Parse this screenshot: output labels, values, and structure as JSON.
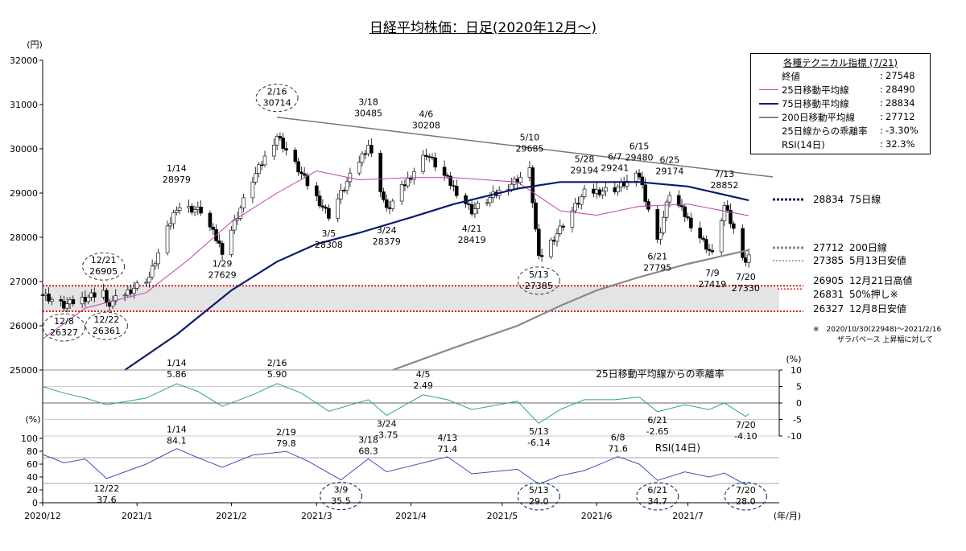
{
  "title": "日経平均株価：日足(2020年12月～)",
  "colors": {
    "candle_up": "#ffffff",
    "candle_down": "#000000",
    "ma25": "#c040b0",
    "ma75": "#0a1a6e",
    "ma200": "#888888",
    "trendline": "#777777",
    "band_fill": "#e4e4e4",
    "band_line": "#d41f1f",
    "deviation": "#2aa198",
    "rsi": "#3f51b5",
    "ellipse": "#333333"
  },
  "legend": {
    "title": "各種テクニカル指標 (7/21)",
    "rows": [
      {
        "name": "終値",
        "value": "27548",
        "swatch": "none"
      },
      {
        "name": "25日移動平均線",
        "value": "28490",
        "swatch": "ma25"
      },
      {
        "name": "75日移動平均線",
        "value": "28834",
        "swatch": "ma75"
      },
      {
        "name": "200日移動平均線",
        "value": "27712",
        "swatch": "ma200"
      },
      {
        "name": "25日線からの乖離率",
        "value": "-3.30%",
        "swatch": "none"
      },
      {
        "name": "RSI(14日)",
        "value": "32.3%",
        "swatch": "none"
      }
    ]
  },
  "right_labels": [
    {
      "value": "28834",
      "text": "75日線",
      "price": 28834,
      "line": "ma75"
    },
    {
      "value": "27712",
      "text": "200日線",
      "price": 27712,
      "line": "ma200"
    },
    {
      "value": "27385",
      "text": "5月13日安値",
      "price": 27385,
      "line": "dotted"
    },
    {
      "value": "26905",
      "text": "12月21日高値",
      "price": 26905,
      "line": "none"
    },
    {
      "value": "26831",
      "text": "50%押し※",
      "price": 26831,
      "line": "red"
    },
    {
      "value": "26327",
      "text": "12月8日安値",
      "price": 26327,
      "line": "none"
    }
  ],
  "footnote": {
    "line1": "※　2020/10/30(22948)～2021/2/16",
    "line2": "ザラバベース 上昇幅に対して"
  },
  "chart_data": [
    {
      "type": "candlestick",
      "title": "日経平均株価：日足(2020年12月～)",
      "yunit": "(円)",
      "ylim": [
        25000,
        32000
      ],
      "yticks": [
        "25000",
        "26000",
        "27000",
        "28000",
        "29000",
        "30000",
        "31000",
        "32000"
      ],
      "grid": false,
      "band": [
        26327,
        26905
      ],
      "band_line": 26831,
      "trendline": {
        "from": {
          "x": "2021/2/16",
          "y": 30714
        },
        "to": {
          "x": "2021/7/21",
          "y": 29430
        }
      },
      "annotations": [
        {
          "date": "2020/12/8",
          "text": "12/8",
          "value": "26327",
          "price": 26327,
          "side": "below",
          "circled": true
        },
        {
          "date": "2020/12/21",
          "text": "12/21",
          "value": "26905",
          "price": 26905,
          "side": "above",
          "circled": true
        },
        {
          "date": "2020/12/22",
          "text": "12/22",
          "value": "26361",
          "price": 26361,
          "side": "below",
          "circled": true
        },
        {
          "date": "2021/1/14",
          "text": "1/14",
          "value": "28979",
          "price": 28979,
          "side": "above",
          "circled": false
        },
        {
          "date": "2021/1/29",
          "text": "1/29",
          "value": "27629",
          "price": 27629,
          "side": "below",
          "circled": false
        },
        {
          "date": "2021/2/16",
          "text": "2/16",
          "value": "30714",
          "price": 30714,
          "side": "above",
          "circled": true
        },
        {
          "date": "2021/3/5",
          "text": "3/5",
          "value": "28308",
          "price": 28308,
          "side": "below",
          "circled": false
        },
        {
          "date": "2021/3/18",
          "text": "3/18",
          "value": "30485",
          "price": 30485,
          "side": "above",
          "circled": false
        },
        {
          "date": "2021/3/24",
          "text": "3/24",
          "value": "28379",
          "price": 28379,
          "side": "below",
          "circled": false
        },
        {
          "date": "2021/4/6",
          "text": "4/6",
          "value": "30208",
          "price": 30208,
          "side": "above",
          "circled": false
        },
        {
          "date": "2021/4/21",
          "text": "4/21",
          "value": "28419",
          "price": 28419,
          "side": "below",
          "circled": false
        },
        {
          "date": "2021/5/10",
          "text": "5/10",
          "value": "29685",
          "price": 29685,
          "side": "above",
          "circled": false
        },
        {
          "date": "2021/5/13",
          "text": "5/13",
          "value": "27385",
          "price": 27385,
          "side": "below",
          "circled": true
        },
        {
          "date": "2021/5/28",
          "text": "5/28",
          "value": "29194",
          "price": 29194,
          "side": "above",
          "circled": false
        },
        {
          "date": "2021/6/7",
          "text": "6/7",
          "value": "29241",
          "price": 29241,
          "side": "above",
          "circled": false
        },
        {
          "date": "2021/6/15",
          "text": "6/15",
          "value": "29480",
          "price": 29480,
          "side": "above",
          "circled": false
        },
        {
          "date": "2021/6/21",
          "text": "6/21",
          "value": "27795",
          "price": 27795,
          "side": "below",
          "circled": false
        },
        {
          "date": "2021/6/25",
          "text": "6/25",
          "value": "29174",
          "price": 29174,
          "side": "above",
          "circled": false
        },
        {
          "date": "2021/7/9",
          "text": "7/9",
          "value": "27419",
          "price": 27419,
          "side": "below",
          "circled": false
        },
        {
          "date": "2021/7/13",
          "text": "7/13",
          "value": "28852",
          "price": 28852,
          "side": "above",
          "circled": false
        },
        {
          "date": "2021/7/20",
          "text": "7/20",
          "value": "27330",
          "price": 27330,
          "side": "below",
          "circled": false
        }
      ],
      "series": [
        {
          "name": "25日移動平均線",
          "line": "ma25",
          "x": [
            "2020/12/1",
            "2020/12/15",
            "2021/1/4",
            "2021/1/18",
            "2021/2/1",
            "2021/2/16",
            "2021/3/1",
            "2021/3/15",
            "2021/4/1",
            "2021/4/15",
            "2021/5/6",
            "2021/5/20",
            "2021/6/1",
            "2021/6/15",
            "2021/7/1",
            "2021/7/21"
          ],
          "values": [
            25700,
            26400,
            26750,
            27500,
            28350,
            29000,
            29500,
            29300,
            29350,
            29350,
            29250,
            28600,
            28500,
            28700,
            28750,
            28490
          ]
        },
        {
          "name": "75日移動平均線",
          "line": "ma75",
          "x": [
            "2020/12/28",
            "2021/1/14",
            "2021/2/1",
            "2021/2/16",
            "2021/3/1",
            "2021/3/15",
            "2021/4/1",
            "2021/4/15",
            "2021/5/6",
            "2021/5/20",
            "2021/6/1",
            "2021/6/15",
            "2021/7/1",
            "2021/7/21"
          ],
          "values": [
            25000,
            25800,
            26800,
            27450,
            27850,
            28100,
            28450,
            28750,
            29100,
            29250,
            29250,
            29250,
            29150,
            28834
          ]
        },
        {
          "name": "200日移動平均線",
          "line": "ma200",
          "x": [
            "2021/3/26",
            "2021/4/15",
            "2021/5/6",
            "2021/5/20",
            "2021/6/1",
            "2021/6/15",
            "2021/7/1",
            "2021/7/21"
          ],
          "values": [
            25000,
            25500,
            26000,
            26450,
            26800,
            27100,
            27400,
            27712
          ]
        }
      ]
    },
    {
      "type": "line",
      "title": "25日移動平均線からの乖離率",
      "yunit": "(%)",
      "ylim": [
        -10,
        10
      ],
      "yticks": [
        "10",
        "5",
        "0",
        "-5",
        "-10"
      ],
      "grid": true,
      "annotations": [
        {
          "date": "2021/1/14",
          "text": "1/14",
          "value": "5.86",
          "side": "above"
        },
        {
          "date": "2021/2/16",
          "text": "2/16",
          "value": "5.90",
          "side": "above"
        },
        {
          "date": "2021/3/24",
          "text": "3/24",
          "value": "-3.75",
          "side": "below"
        },
        {
          "date": "2021/4/5",
          "text": "4/5",
          "value": "2.49",
          "side": "above"
        },
        {
          "date": "2021/5/13",
          "text": "5/13",
          "value": "-6.14",
          "side": "below"
        },
        {
          "date": "2021/6/21",
          "text": "6/21",
          "value": "-2.65",
          "side": "below"
        },
        {
          "date": "2021/7/20",
          "text": "7/20",
          "value": "-4.10",
          "side": "below"
        }
      ],
      "series": [
        {
          "name": "25日移動平均線からの乖離率",
          "line": "deviation",
          "x": [
            "2020/12/1",
            "2020/12/8",
            "2020/12/15",
            "2020/12/22",
            "2021/1/4",
            "2021/1/14",
            "2021/1/21",
            "2021/1/29",
            "2021/2/8",
            "2021/2/16",
            "2021/2/24",
            "2021/3/5",
            "2021/3/18",
            "2021/3/24",
            "2021/4/5",
            "2021/4/13",
            "2021/4/21",
            "2021/5/6",
            "2021/5/13",
            "2021/5/20",
            "2021/5/28",
            "2021/6/7",
            "2021/6/15",
            "2021/6/21",
            "2021/6/30",
            "2021/7/8",
            "2021/7/13",
            "2021/7/20",
            "2021/7/21"
          ],
          "values": [
            5,
            3,
            1.5,
            -0.5,
            1.5,
            5.86,
            3.5,
            -1,
            2.5,
            5.9,
            3,
            -2.5,
            1,
            -3.75,
            2.49,
            1,
            -2,
            0.5,
            -6.14,
            -2,
            1,
            1,
            1.8,
            -2.65,
            -0.5,
            -2,
            0,
            -4.1,
            -3.3
          ]
        }
      ]
    },
    {
      "type": "line",
      "title": "RSI(14日)",
      "yunit": "(%)",
      "ylim": [
        0,
        100
      ],
      "yticks": [
        "0",
        "20",
        "40",
        "60",
        "80",
        "100"
      ],
      "grid": true,
      "annotations": [
        {
          "date": "2020/12/22",
          "text": "12/22",
          "value": "37.6",
          "side": "below",
          "circled": false
        },
        {
          "date": "2021/1/14",
          "text": "1/14",
          "value": "84.1",
          "side": "above",
          "circled": false
        },
        {
          "date": "2021/2/19",
          "text": "2/19",
          "value": "79.8",
          "side": "above",
          "circled": false
        },
        {
          "date": "2021/3/9",
          "text": "3/9",
          "value": "35.5",
          "side": "below",
          "circled": true
        },
        {
          "date": "2021/3/18",
          "text": "3/18",
          "value": "68.3",
          "side": "above",
          "circled": false
        },
        {
          "date": "2021/4/13",
          "text": "4/13",
          "value": "71.4",
          "side": "above",
          "circled": false
        },
        {
          "date": "2021/5/13",
          "text": "5/13",
          "value": "29.0",
          "side": "below",
          "circled": true
        },
        {
          "date": "2021/6/8",
          "text": "6/8",
          "value": "71.6",
          "side": "above",
          "circled": false
        },
        {
          "date": "2021/6/21",
          "text": "6/21",
          "value": "34.7",
          "side": "below",
          "circled": true
        },
        {
          "date": "2021/7/20",
          "text": "7/20",
          "value": "28.0",
          "side": "below",
          "circled": true
        }
      ],
      "series": [
        {
          "name": "RSI(14日)",
          "line": "rsi",
          "x": [
            "2020/12/1",
            "2020/12/8",
            "2020/12/15",
            "2020/12/22",
            "2021/1/4",
            "2021/1/14",
            "2021/1/21",
            "2021/1/29",
            "2021/2/8",
            "2021/2/19",
            "2021/2/26",
            "2021/3/9",
            "2021/3/18",
            "2021/3/24",
            "2021/4/5",
            "2021/4/13",
            "2021/4/21",
            "2021/5/6",
            "2021/5/13",
            "2021/5/20",
            "2021/5/28",
            "2021/6/8",
            "2021/6/15",
            "2021/6/21",
            "2021/6/30",
            "2021/7/8",
            "2021/7/13",
            "2021/7/20",
            "2021/7/21"
          ],
          "values": [
            75,
            62,
            68,
            37.6,
            60,
            84.1,
            70,
            55,
            74,
            79.8,
            65,
            35.5,
            68.3,
            48,
            62,
            71.4,
            45,
            52,
            29,
            42,
            50,
            71.6,
            60,
            34.7,
            48,
            40,
            46,
            28,
            32.3
          ]
        }
      ]
    }
  ],
  "x_axis": {
    "unit": "(年/月)",
    "start": "2020/12/1",
    "end": "2021/7/31",
    "ticks": [
      {
        "date": "2020/12/1",
        "label": "2020/12"
      },
      {
        "date": "2021/1/1",
        "label": "2021/1"
      },
      {
        "date": "2021/2/1",
        "label": "2021/2"
      },
      {
        "date": "2021/3/1",
        "label": "2021/3"
      },
      {
        "date": "2021/4/1",
        "label": "2021/4"
      },
      {
        "date": "2021/5/1",
        "label": "2021/5"
      },
      {
        "date": "2021/6/1",
        "label": "2021/6"
      },
      {
        "date": "2021/7/1",
        "label": "2021/7"
      }
    ]
  }
}
